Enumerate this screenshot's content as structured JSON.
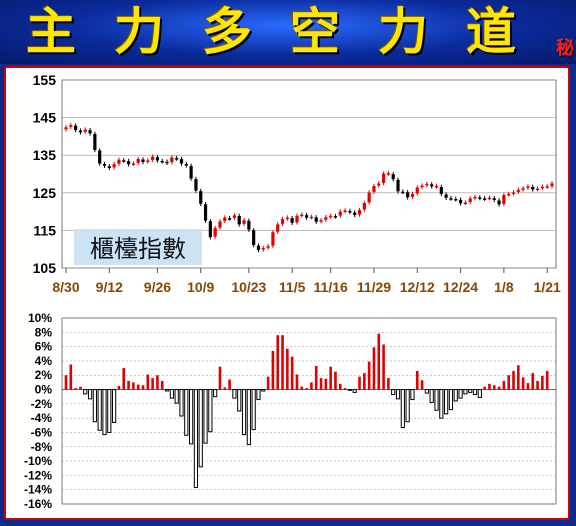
{
  "banner": {
    "title": "主力多空力道",
    "secret_mark": "秘"
  },
  "colors": {
    "up": "#e00000",
    "down": "#000000",
    "grid": "#999999",
    "axis_text": "#000000",
    "date_text": "#8b4500",
    "label_bg": "#cce3f5"
  },
  "chart_data": [
    {
      "type": "candlestick",
      "title": "櫃檯指數",
      "ylim": [
        105,
        155
      ],
      "yticks": [
        105,
        115,
        125,
        135,
        145,
        155
      ],
      "grid": true,
      "xtick_labels": [
        "8/30",
        "9/12",
        "9/26",
        "10/9",
        "10/23",
        "11/5",
        "11/16",
        "11/29",
        "12/12",
        "12/24",
        "1/8",
        "1/21"
      ],
      "xtick_index": [
        0,
        9,
        19,
        28,
        38,
        47,
        55,
        64,
        73,
        82,
        91,
        100
      ],
      "closes": [
        142.4,
        143.0,
        141.7,
        141.1,
        141.8,
        140.8,
        136.4,
        132.8,
        132.2,
        131.6,
        132.6,
        133.8,
        133.6,
        132.6,
        132.8,
        134.0,
        133.2,
        133.6,
        134.6,
        133.6,
        133.4,
        133.0,
        134.4,
        134.1,
        132.8,
        132.3,
        128.8,
        125.6,
        122.1,
        117.6,
        113.2,
        115.6,
        117.4,
        118.4,
        118.2,
        119.0,
        116.6,
        117.7,
        115.2,
        111.1,
        109.8,
        110.3,
        110.8,
        114.5,
        116.6,
        118.0,
        118.4,
        117.0,
        118.9,
        119.2,
        118.4,
        118.6,
        117.3,
        117.7,
        118.5,
        118.9,
        118.8,
        120.0,
        120.3,
        119.9,
        119.1,
        120.4,
        122.3,
        125.1,
        126.8,
        127.5,
        130.1,
        130.1,
        128.6,
        125.4,
        125.3,
        123.8,
        124.7,
        126.4,
        126.9,
        127.4,
        126.7,
        126.7,
        124.7,
        123.7,
        123.5,
        123.3,
        122.2,
        122.4,
        123.5,
        123.9,
        123.6,
        123.5,
        123.7,
        123.1,
        121.9,
        124.4,
        124.7,
        125.1,
        125.8,
        126.2,
        126.7,
        125.9,
        126.1,
        126.6,
        126.6,
        127.5
      ]
    },
    {
      "type": "bar",
      "ylabel": "",
      "ylim": [
        -16,
        10
      ],
      "yticks": [
        -16,
        -14,
        -12,
        -10,
        -8,
        -6,
        -4,
        -2,
        0,
        2,
        4,
        6,
        8,
        10
      ],
      "ytick_labels": [
        "-16%",
        "-14%",
        "-12%",
        "-10%",
        "-8%",
        "-6%",
        "-4%",
        "-2%",
        "0%",
        "2%",
        "4%",
        "6%",
        "8%",
        "10%"
      ],
      "values": [
        2.0,
        3.5,
        0.2,
        0.4,
        -0.6,
        -1.3,
        -4.5,
        -5.7,
        -6.3,
        -6.0,
        -4.6,
        0.5,
        3.0,
        1.2,
        1.0,
        0.7,
        0.6,
        2.1,
        1.6,
        2.0,
        1.2,
        -0.2,
        -1.2,
        -1.9,
        -3.7,
        -6.4,
        -7.6,
        -13.7,
        -10.8,
        -7.5,
        -5.9,
        -1.0,
        3.2,
        0.3,
        1.4,
        -1.2,
        -3.0,
        -6.3,
        -7.7,
        -5.6,
        -1.4,
        -0.2,
        1.8,
        5.4,
        7.6,
        7.6,
        5.7,
        4.6,
        2.1,
        0.4,
        0.2,
        1.0,
        3.3,
        1.6,
        1.5,
        3.2,
        2.5,
        0.8,
        0.2,
        -0.1,
        -0.4,
        1.8,
        2.3,
        3.9,
        5.9,
        7.8,
        6.3,
        1.6,
        -0.7,
        -1.3,
        -5.3,
        -4.5,
        -1.4,
        2.6,
        1.3,
        -0.5,
        -1.8,
        -2.9,
        -4.0,
        -3.4,
        -2.8,
        -1.6,
        -1.2,
        -0.6,
        -0.4,
        -0.7,
        -1.1,
        0.4,
        0.8,
        0.6,
        0.4,
        1.2,
        2.0,
        2.6,
        3.4,
        1.7,
        0.9,
        2.3,
        1.2,
        1.9,
        2.6
      ]
    }
  ]
}
